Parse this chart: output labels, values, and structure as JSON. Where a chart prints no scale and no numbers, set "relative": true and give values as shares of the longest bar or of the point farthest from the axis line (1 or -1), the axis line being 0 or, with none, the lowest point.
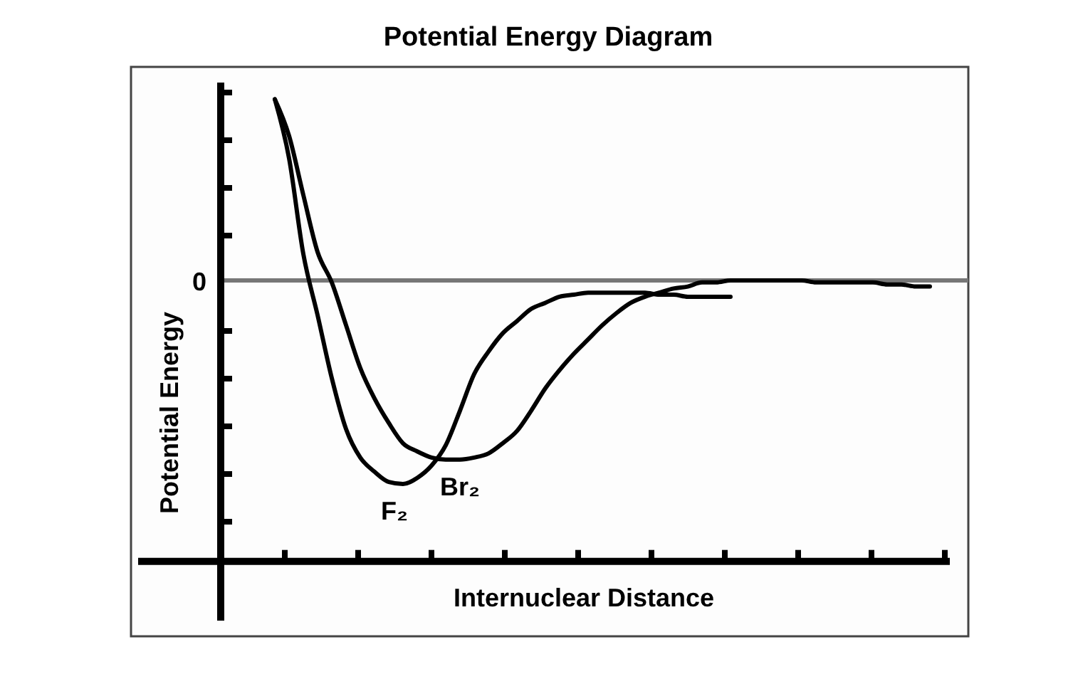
{
  "chart_data": {
    "type": "line",
    "title": "Potential Energy Diagram",
    "xlabel": "Internuclear Distance",
    "ylabel": "Potential Energy",
    "relative": true,
    "categories": [
      null,
      null,
      null,
      null,
      null,
      null,
      null,
      null,
      null,
      null,
      null,
      null,
      null,
      null,
      null,
      null,
      null,
      null,
      null,
      null,
      null,
      null,
      null,
      null,
      null,
      null,
      null,
      null,
      null,
      null,
      null,
      null,
      null,
      null,
      null,
      null,
      null,
      null,
      null,
      null,
      null,
      null,
      null,
      null,
      null,
      null,
      null
    ],
    "series": [
      {
        "name": "F₂",
        "color": "#000000",
        "values": [
          0.89,
          0.6,
          0.13,
          -0.17,
          -0.48,
          -0.73,
          -0.87,
          -0.94,
          -0.99,
          -1,
          -0.97,
          -0.91,
          -0.81,
          -0.64,
          -0.46,
          -0.35,
          -0.26,
          -0.2,
          -0.14,
          -0.11,
          -0.08,
          -0.07,
          -0.06,
          -0.06,
          -0.06,
          -0.06,
          -0.06,
          -0.07,
          -0.07,
          -0.08,
          -0.08,
          -0.08,
          -0.08,
          null,
          null,
          null,
          null,
          null,
          null,
          null,
          null,
          null,
          null,
          null,
          null,
          null,
          null
        ]
      },
      {
        "name": "Br₂",
        "color": "#000000",
        "values": [
          0.89,
          0.71,
          0.42,
          0.14,
          -0.01,
          -0.22,
          -0.43,
          -0.58,
          -0.7,
          -0.8,
          -0.84,
          -0.87,
          -0.88,
          -0.88,
          -0.87,
          -0.85,
          -0.8,
          -0.74,
          -0.64,
          -0.53,
          -0.44,
          -0.36,
          -0.29,
          -0.22,
          -0.16,
          -0.11,
          -0.08,
          -0.06,
          -0.04,
          -0.03,
          -0.01,
          -0.01,
          0,
          0,
          0,
          0,
          0,
          0,
          -0.01,
          -0.01,
          -0.01,
          -0.01,
          -0.01,
          -0.02,
          -0.02,
          -0.03,
          -0.03
        ]
      }
    ],
    "ref_lines": [
      {
        "axis": "y",
        "value": 0,
        "label": "0",
        "color": "#777777"
      }
    ]
  }
}
